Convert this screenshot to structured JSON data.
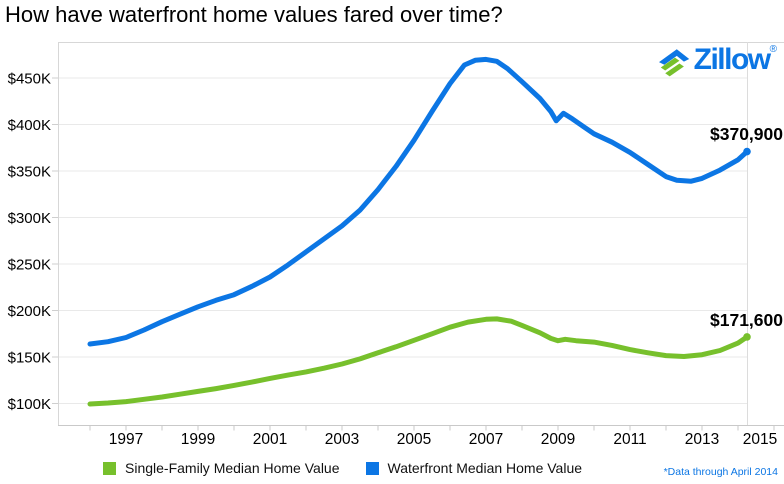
{
  "header": {
    "title": "How have waterfront home values fared over time?"
  },
  "logo": {
    "brand": "Zillow",
    "registered": "®",
    "blue": "#0c76e4",
    "green": "#77c02c"
  },
  "annotations": {
    "waterfront_value": "$370,900",
    "single_family_value": "$171,600",
    "footnote": "*Data through April 2014"
  },
  "legend": [
    {
      "label": "Single-Family Median Home Value",
      "color": "#77c02c"
    },
    {
      "label": "Waterfront Median Home Value",
      "color": "#0c76e4"
    }
  ],
  "chart_data": {
    "type": "line",
    "title": "How have waterfront home values fared over time?",
    "units": "USD thousands",
    "grid": true,
    "legend_position": "bottom",
    "xlim": [
      1996,
      2015.3
    ],
    "ylim": [
      85,
      480
    ],
    "y_gridline_values": [
      100,
      150,
      200,
      250,
      300,
      350,
      400,
      450
    ],
    "y_tick_label_format": "$%dK",
    "x_tick_labels": [
      1997,
      1999,
      2001,
      2003,
      2005,
      2007,
      2009,
      2011,
      2013,
      2015
    ],
    "x_minor_tick_years": [
      1996,
      1997,
      1998,
      1999,
      2000,
      2001,
      2002,
      2003,
      2004,
      2005,
      2006,
      2007,
      2008,
      2009,
      2010,
      2011,
      2012,
      2013,
      2014,
      2015
    ],
    "data_end": "April 2014",
    "series": [
      {
        "name": "Waterfront Median Home Value",
        "color": "#0c76e4",
        "end_label": "$370,900",
        "end_value": 370.9,
        "x": [
          1996,
          1996.5,
          1997,
          1997.5,
          1998,
          1998.5,
          1999,
          1999.5,
          2000,
          2000.5,
          2001,
          2001.5,
          2002,
          2002.5,
          2003,
          2003.5,
          2004,
          2004.5,
          2005,
          2005.5,
          2006,
          2006.4,
          2006.7,
          2007,
          2007.3,
          2007.6,
          2008,
          2008.5,
          2008.8,
          2008.95,
          2009.15,
          2009.4,
          2009.7,
          2010,
          2010.5,
          2011,
          2011.5,
          2012,
          2012.3,
          2012.7,
          2013,
          2013.5,
          2014,
          2014.25
        ],
        "values": [
          164,
          166.5,
          171,
          179,
          188,
          196,
          204,
          211,
          217,
          226,
          236,
          249,
          263,
          277,
          291,
          308,
          330,
          355,
          383,
          414,
          444,
          464,
          469,
          470,
          468,
          460,
          446,
          428,
          414,
          404,
          412,
          406,
          398,
          390,
          381,
          370,
          357,
          344,
          340,
          339,
          342,
          351,
          362,
          370.9
        ]
      },
      {
        "name": "Single-Family Median Home Value",
        "color": "#77c02c",
        "end_label": "$171,600",
        "end_value": 171.6,
        "x": [
          1996,
          1996.5,
          1997,
          1997.5,
          1998,
          1998.5,
          1999,
          1999.5,
          2000,
          2000.5,
          2001,
          2001.5,
          2002,
          2002.5,
          2003,
          2003.5,
          2004,
          2004.5,
          2005,
          2005.5,
          2006,
          2006.5,
          2007,
          2007.3,
          2007.7,
          2008,
          2008.5,
          2008.8,
          2009,
          2009.2,
          2009.5,
          2010,
          2010.5,
          2011,
          2011.5,
          2012,
          2012.5,
          2013,
          2013.5,
          2014,
          2014.25
        ],
        "values": [
          99.5,
          100.5,
          102,
          104.5,
          107,
          110,
          113,
          116,
          119.5,
          123,
          127,
          130.5,
          134,
          138,
          142.5,
          148,
          154.5,
          161,
          168,
          175,
          182,
          187.5,
          190.5,
          191,
          188.5,
          184,
          176,
          170,
          167.5,
          169,
          167.5,
          166,
          162.5,
          158,
          154.5,
          151.5,
          150.5,
          152.5,
          157,
          165,
          171.6
        ]
      }
    ]
  }
}
